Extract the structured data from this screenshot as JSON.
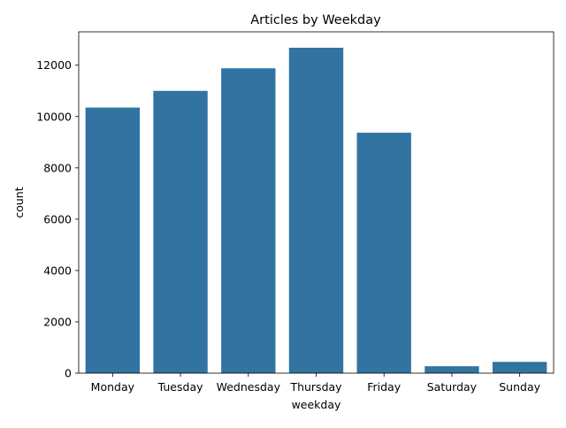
{
  "chart_data": {
    "type": "bar",
    "title": "Articles by Weekday",
    "xlabel": "weekday",
    "ylabel": "count",
    "categories": [
      "Monday",
      "Tuesday",
      "Wednesday",
      "Thursday",
      "Friday",
      "Saturday",
      "Sunday"
    ],
    "values": [
      10350,
      11000,
      11880,
      12680,
      9370,
      270,
      440
    ],
    "ylim": [
      0,
      13300
    ],
    "yticks": [
      0,
      2000,
      4000,
      6000,
      8000,
      10000,
      12000
    ],
    "ytick_labels": [
      "0",
      "2000",
      "4000",
      "6000",
      "8000",
      "10000",
      "12000"
    ],
    "grid": false,
    "legend": "none",
    "bar_color": "#3274a1"
  }
}
